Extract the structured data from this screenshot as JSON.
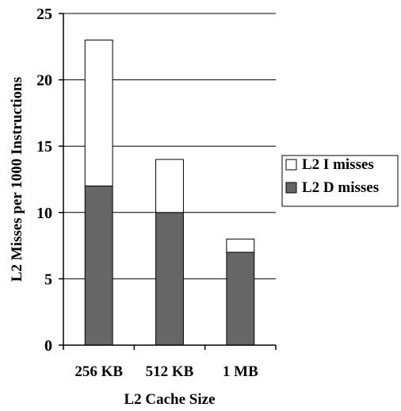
{
  "chart_data": {
    "type": "bar",
    "stacked": true,
    "categories": [
      "256 KB",
      "512 KB",
      "1 MB"
    ],
    "series": [
      {
        "name": "L2 D misses",
        "values": [
          12,
          10,
          7
        ],
        "color": "#666666"
      },
      {
        "name": "L2 I misses",
        "values": [
          11,
          4,
          1
        ],
        "color": "#ffffff"
      }
    ],
    "title": "",
    "xlabel": "L2 Cache Size",
    "ylabel": "L2 Misses per 1000 Instructions",
    "ylim": [
      0,
      25
    ],
    "yticks": [
      0,
      5,
      10,
      15,
      20,
      25
    ],
    "grid": true,
    "legend": {
      "position": "right",
      "entries": [
        "L2 I misses",
        "L2 D misses"
      ]
    }
  }
}
